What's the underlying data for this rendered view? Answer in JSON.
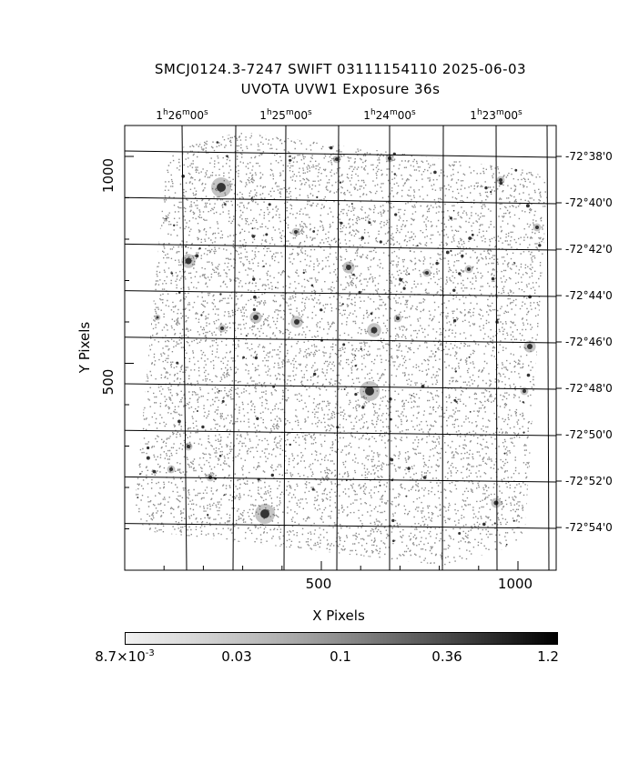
{
  "title": {
    "line1": "SMCJ0124.3-7247 SWIFT 03111154110 2025-06-03",
    "line2": "UVOTA UVW1 Exposure        36s"
  },
  "ra_labels": [
    {
      "h": "1",
      "m": "26",
      "s": "00"
    },
    {
      "h": "1",
      "m": "25",
      "s": "00"
    },
    {
      "h": "1",
      "m": "24",
      "s": "00"
    },
    {
      "h": "1",
      "m": "23",
      "s": "00"
    }
  ],
  "dec_labels": [
    "-72°38'0",
    "-72°40'0",
    "-72°42'0",
    "-72°44'0",
    "-72°46'0",
    "-72°48'0",
    "-72°50'0",
    "-72°52'0",
    "-72°54'0"
  ],
  "x_ticks": [
    "500",
    "1000"
  ],
  "y_ticks": [
    "1000",
    "500"
  ],
  "axes": {
    "xlabel": "X Pixels",
    "ylabel": "Y Pixels"
  },
  "colorbar": {
    "labels": [
      {
        "base": "8.7×10",
        "exp": "-3"
      },
      {
        "base": "0.03",
        "exp": ""
      },
      {
        "base": "0.1",
        "exp": ""
      },
      {
        "base": "0.36",
        "exp": ""
      },
      {
        "base": "1.2",
        "exp": ""
      }
    ]
  },
  "colors": {
    "background": "#ffffff",
    "ink": "#000000",
    "noise": "#7a7a7a"
  }
}
